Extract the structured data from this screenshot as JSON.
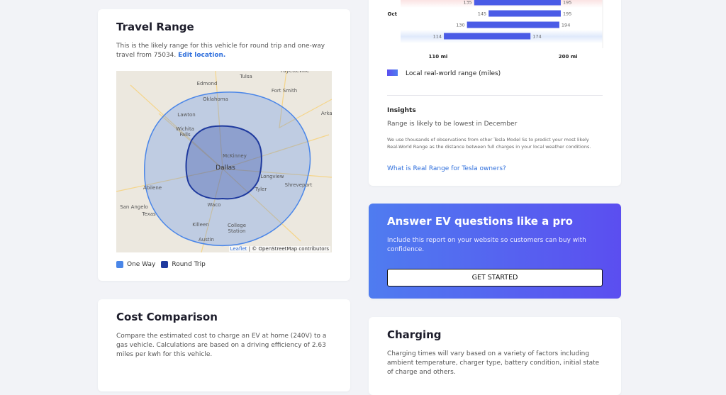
{
  "travel_range": {
    "title": "Travel Range",
    "description": "This is the likely range for this vehicle for round trip and one-way travel from 75034.",
    "link": "Edit location.",
    "map_labels": [
      "Fayetteville",
      "Tulsa",
      "Edmond",
      "Fort Smith",
      "Oklahoma",
      "Lawton",
      "Arkan",
      "Wichita Falls",
      "McKinney",
      "Dallas",
      "Longview",
      "Shreveport",
      "Abilene",
      "Tyler",
      "San Angelo",
      "Waco",
      "Texas",
      "Killeen",
      "College Station",
      "Austin"
    ],
    "attribution_leaflet": "Leaflet",
    "attribution_rest": "| © OpenStreetMap contributors",
    "legend": [
      {
        "label": "One Way",
        "color": "#4a86e8"
      },
      {
        "label": "Round Trip",
        "color": "#1f3a9e"
      }
    ]
  },
  "chart_data": {
    "type": "range_bar",
    "categories": [
      null,
      "Oct",
      null,
      null
    ],
    "series": [
      {
        "name": "Local real-world range (miles)",
        "color": "#4a5be6",
        "low": [
          135,
          145,
          130,
          114
        ],
        "high": [
          195,
          195,
          194,
          174
        ]
      }
    ],
    "xlim": [
      84,
      224
    ],
    "xticks": [
      {
        "value": 110,
        "label": "110 mi"
      },
      {
        "value": 200,
        "label": "200 mi"
      }
    ]
  },
  "insights": {
    "heading": "Insights",
    "headline": "Range is likely to be lowest in December",
    "body": "We use thousands of observations from other Tesla Model Ss to predict your most likely Real-World Range as the distance between full charges in your local weather conditions.",
    "link": "What is Real Range for Tesla owners?"
  },
  "cta": {
    "title": "Answer EV questions like a pro",
    "body": "Include this report on your website so customers can buy with confidence.",
    "button": "GET STARTED"
  },
  "cost": {
    "title": "Cost Comparison",
    "body": "Compare the estimated cost to charge an EV at home (240V) to a gas vehicle. Calculations are based on a driving efficiency of 2.63 miles per kwh for this vehicle."
  },
  "charging": {
    "title": "Charging",
    "body": "Charging times will vary based on a variety of factors including ambient temperature, charger type, battery condition, initial state of charge and others."
  }
}
